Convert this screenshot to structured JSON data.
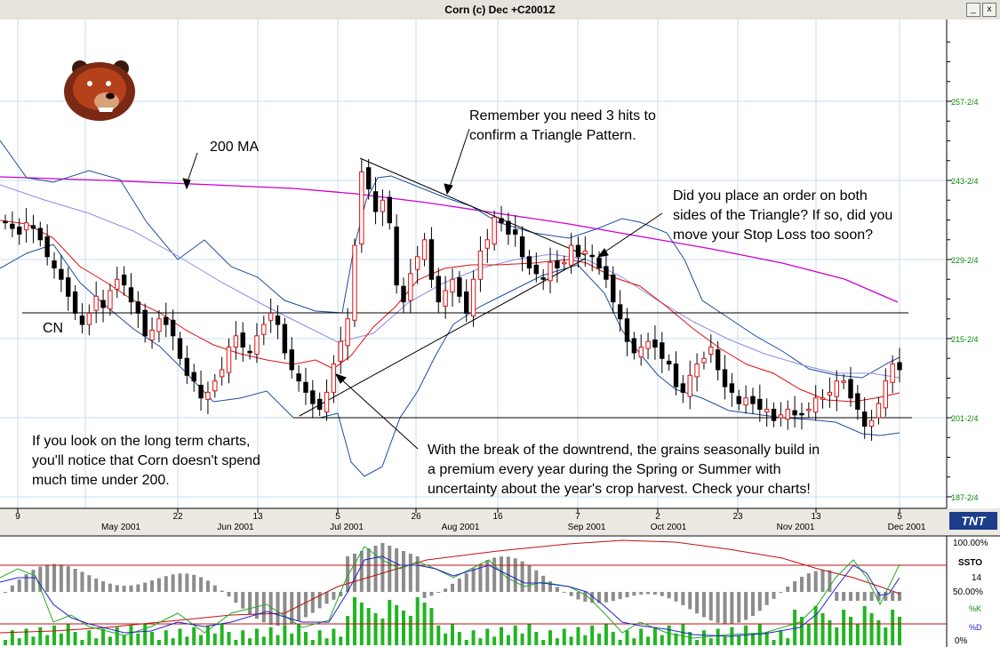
{
  "window": {
    "title": "Corn (c) Dec +C2001Z",
    "controls": [
      "_",
      "x"
    ]
  },
  "chart_data": [
    {
      "type": "candlestick",
      "title": "Corn (c) Dec +C2001Z",
      "symbol": "CN",
      "ylim": [
        185,
        270
      ],
      "y_ticks": [
        {
          "value": 187.5,
          "label": "187-2/4"
        },
        {
          "value": 201.5,
          "label": "201-2/4"
        },
        {
          "value": 215.5,
          "label": "215-2/4"
        },
        {
          "value": 229.5,
          "label": "229-2/4"
        },
        {
          "value": 243.5,
          "label": "243-2/4"
        },
        {
          "value": 257.5,
          "label": "257-2/4"
        }
      ],
      "x_days": [
        "9",
        "22",
        "13",
        "5",
        "26",
        "16",
        "7",
        "2",
        "23",
        "13",
        "5"
      ],
      "x_months": [
        "May 2001",
        "Jun 2001",
        "Jul 2001",
        "Aug 2001",
        "Sep 2001",
        "Oct 2001",
        "Nov 2001",
        "Dec 2001"
      ],
      "series": [
        {
          "name": "200 MA",
          "color": "#cc00cc"
        }
      ],
      "closes": [
        236,
        235,
        234,
        236,
        235,
        233,
        230,
        228,
        226,
        223,
        220,
        218,
        220,
        223,
        221,
        224,
        226,
        225,
        222,
        220,
        216,
        217,
        219,
        218,
        216,
        212,
        209,
        208,
        205,
        206,
        208,
        210,
        214,
        216,
        214,
        213,
        216,
        218,
        220,
        218,
        213,
        210,
        208,
        206,
        204,
        203,
        206,
        211,
        215,
        219,
        232,
        245,
        242,
        238,
        240,
        236,
        225,
        222,
        227,
        230,
        233,
        226,
        222,
        224,
        226,
        223,
        220,
        226,
        231,
        233,
        237,
        236,
        234,
        234,
        230,
        228,
        227,
        226,
        229,
        228,
        229,
        232,
        230,
        231,
        230,
        228,
        226,
        222,
        219,
        215,
        213,
        214,
        215,
        214,
        212,
        211,
        207,
        206,
        209,
        211,
        212,
        214,
        210,
        207,
        206,
        204,
        205,
        204,
        203,
        203,
        201,
        202,
        203,
        202,
        202,
        203,
        205,
        205,
        206,
        208,
        208,
        205,
        203,
        200,
        201,
        204,
        208,
        211,
        210
      ],
      "support_line": 202,
      "resistance_line": 221.5,
      "annotations": [
        "200 MA",
        "Remember you need 3 hits to",
        "confirm a Triangle Pattern.",
        "Did you place an order on both",
        "sides of the Triangle? If so, did you",
        "move your Stop Loss too soon?",
        "If you look on the long term charts,",
        "you'll notice that Corn doesn't spend",
        "much time under 200.",
        "With the break of the downtrend, the grains seasonally build in",
        "a premium every year during the Spring or Summer with",
        "uncertainty about the year's crop harvest. Check your charts!"
      ]
    },
    {
      "type": "oscillator",
      "name": "SSTO",
      "period": "14",
      "ylim": [
        0,
        100
      ],
      "levels": [
        80,
        20
      ],
      "y_ticks": [
        {
          "value": 100,
          "label": "100.00%"
        },
        {
          "value": 50,
          "label": "50.00%"
        },
        {
          "value": 0,
          "label": "0%"
        }
      ],
      "series_labels": [
        "%K",
        "%D"
      ]
    }
  ],
  "branding": {
    "logo_text": "TNT",
    "mascot": "bear-head-logo"
  },
  "colors": {
    "ma200": "#cc00cc",
    "bollinger": "#1e4e9e",
    "ma_short": "#e01010",
    "ma_mid": "#8c8ce8",
    "grid": "#b4d4ee",
    "volume": "#22b522",
    "histogram": "#8c8c8c"
  }
}
